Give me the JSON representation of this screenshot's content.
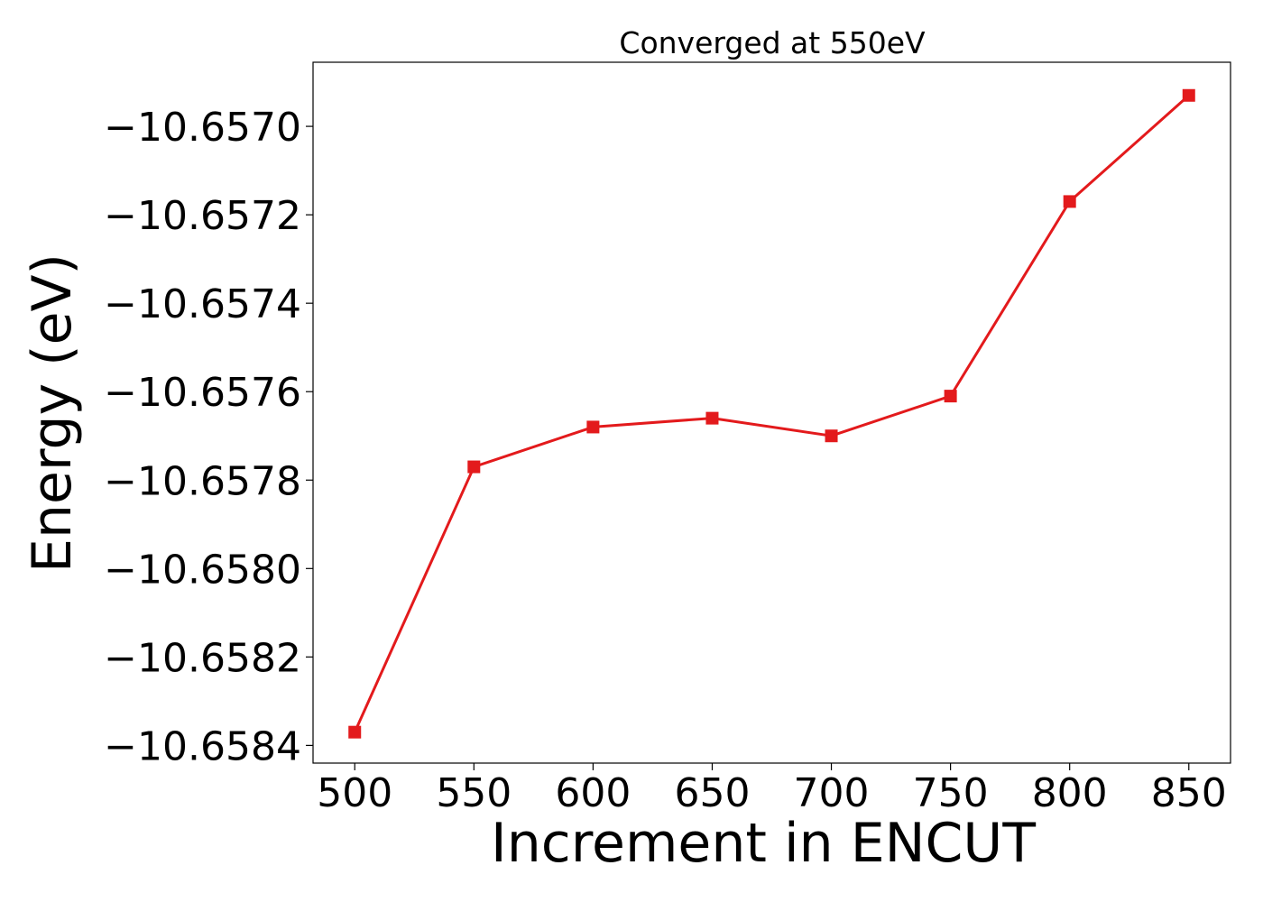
{
  "chart_data": {
    "type": "line",
    "title": "Converged at 550eV",
    "xlabel": "Increment in ENCUT",
    "ylabel": "Energy (eV)",
    "x": [
      500,
      550,
      600,
      650,
      700,
      750,
      800,
      850
    ],
    "series": [
      {
        "values": [
          -10.65837,
          -10.65777,
          -10.65768,
          -10.65766,
          -10.6577,
          -10.65761,
          -10.65717,
          -10.65693
        ],
        "color": "#e31a1c",
        "marker": "square"
      }
    ],
    "xticks": [
      500,
      550,
      600,
      650,
      700,
      750,
      800,
      850
    ],
    "xtick_labels": [
      "500",
      "550",
      "600",
      "650",
      "700",
      "750",
      "800",
      "850"
    ],
    "yticks": [
      -10.657,
      -10.6572,
      -10.6574,
      -10.6576,
      -10.6578,
      -10.658,
      -10.6582,
      -10.6584
    ],
    "ytick_labels": [
      "−10.6570",
      "−10.6572",
      "−10.6574",
      "−10.6576",
      "−10.6578",
      "−10.6580",
      "−10.6582",
      "−10.6584"
    ],
    "xlim": [
      482.5,
      867.5
    ],
    "ylim": [
      -10.65844,
      -10.656855
    ],
    "grid": false,
    "legend": "none"
  }
}
